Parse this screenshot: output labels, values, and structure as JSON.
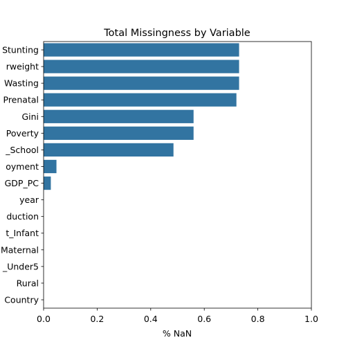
{
  "chart_data": {
    "type": "bar",
    "orientation": "horizontal",
    "title": "Total Missingness by Variable",
    "xlabel": "% NaN",
    "ylabel": "",
    "xlim": [
      0.0,
      1.0
    ],
    "xticks": [
      "0.0",
      "0.2",
      "0.4",
      "0.6",
      "0.8",
      "1.0"
    ],
    "grid": false,
    "bar_color": "#3274a1",
    "categories": [
      "Stunting",
      "rweight",
      "Wasting",
      "Prenatal",
      "Gini",
      "Poverty",
      "_School",
      "oyment",
      "GDP_PC",
      "year",
      "duction",
      "t_Infant",
      "Maternal",
      "_Under5",
      "Rural",
      "Country"
    ],
    "values": [
      0.73,
      0.73,
      0.73,
      0.72,
      0.56,
      0.56,
      0.485,
      0.048,
      0.027,
      0.0,
      0.0,
      0.0,
      0.0,
      0.0,
      0.0,
      0.0
    ]
  }
}
